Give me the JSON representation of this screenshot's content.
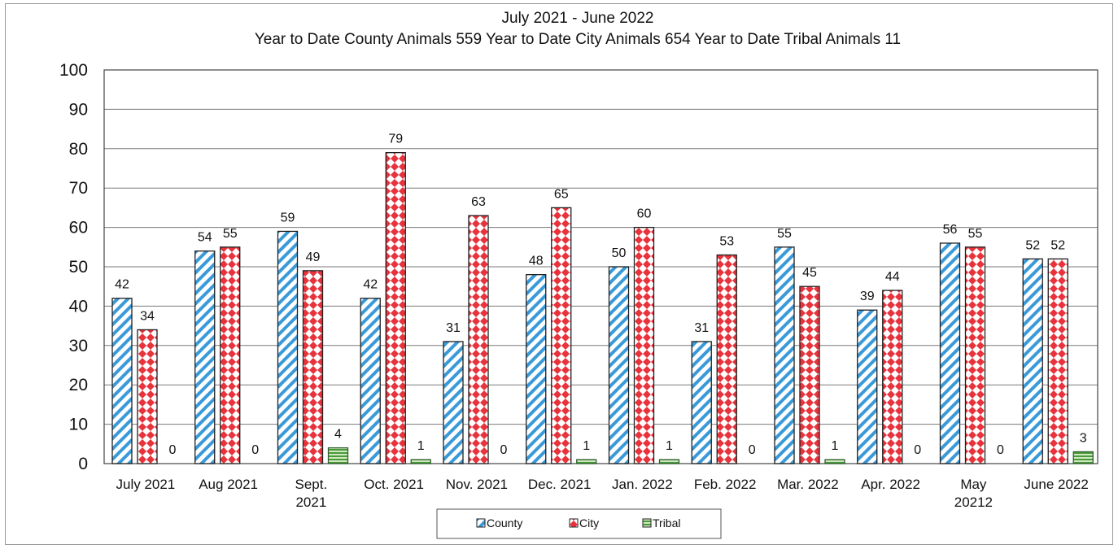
{
  "chart_data": {
    "type": "bar",
    "title_lines": [
      "July 2021 - June 2022",
      "Year to Date County Animals 559    Year to Date City Animals 654    Year to Date Tribal Animals  11"
    ],
    "xlabel": "",
    "ylabel": "",
    "ylim": [
      0,
      100
    ],
    "yticks": [
      0,
      10,
      20,
      30,
      40,
      50,
      60,
      70,
      80,
      90,
      100
    ],
    "grid": true,
    "legend_position": "bottom",
    "categories": [
      [
        "July 2021"
      ],
      [
        "Aug 2021"
      ],
      [
        "Sept.",
        "2021"
      ],
      [
        "Oct. 2021"
      ],
      [
        "Nov. 2021"
      ],
      [
        "Dec. 2021"
      ],
      [
        "Jan. 2022"
      ],
      [
        "Feb. 2022"
      ],
      [
        "Mar. 2022"
      ],
      [
        "Apr. 2022"
      ],
      [
        "May",
        "20212"
      ],
      [
        "June 2022"
      ]
    ],
    "series": [
      {
        "name": "County",
        "values": [
          42,
          54,
          59,
          42,
          31,
          48,
          50,
          31,
          55,
          39,
          56,
          52
        ],
        "color": "#3a9ad9",
        "pattern": "diagonal-stripes"
      },
      {
        "name": "City",
        "values": [
          34,
          55,
          49,
          79,
          63,
          65,
          60,
          53,
          45,
          44,
          55,
          52
        ],
        "color": "#e8323c",
        "pattern": "diamonds"
      },
      {
        "name": "Tribal",
        "values": [
          0,
          0,
          4,
          1,
          0,
          1,
          1,
          0,
          1,
          0,
          0,
          3
        ],
        "color": "#4a9a3a",
        "pattern": "horizontal-lines"
      }
    ]
  }
}
